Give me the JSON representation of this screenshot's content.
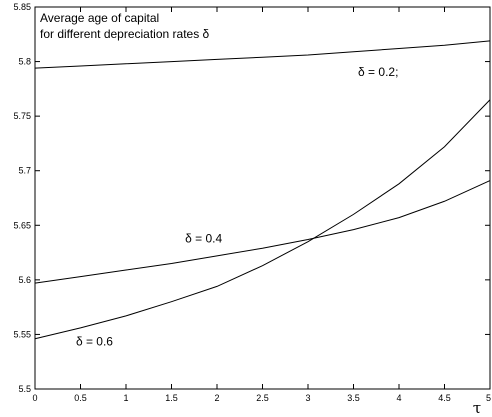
{
  "chart_data": {
    "type": "line",
    "title_lines": [
      "Average age of capital",
      "for different depreciation rates δ"
    ],
    "xlabel": "τ",
    "ylabel": "",
    "xlim": [
      0,
      5
    ],
    "ylim": [
      5.5,
      5.85
    ],
    "grid": false,
    "x_ticks": [
      "0",
      "0.5",
      "1",
      "1.5",
      "2",
      "2.5",
      "3",
      "3.5",
      "4",
      "4.5",
      "5"
    ],
    "y_ticks": [
      "5.5",
      "5.55",
      "5.6",
      "5.65",
      "5.7",
      "5.75",
      "5.8",
      "5.85"
    ],
    "series": [
      {
        "name": "δ = 0.2;",
        "x": [
          0,
          0.5,
          1,
          1.5,
          2,
          2.5,
          3,
          3.5,
          4,
          4.5,
          5
        ],
        "y": [
          5.794,
          5.796,
          5.798,
          5.8,
          5.802,
          5.804,
          5.806,
          5.809,
          5.812,
          5.815,
          5.819
        ]
      },
      {
        "name": "δ = 0.4",
        "x": [
          0,
          0.5,
          1,
          1.5,
          2,
          2.5,
          3,
          3.5,
          4,
          4.5,
          5
        ],
        "y": [
          5.597,
          5.603,
          5.609,
          5.615,
          5.622,
          5.629,
          5.637,
          5.646,
          5.657,
          5.672,
          5.691
        ]
      },
      {
        "name": "δ = 0.6",
        "x": [
          0,
          0.5,
          1,
          1.5,
          2,
          2.5,
          3,
          3.5,
          4,
          4.5,
          5
        ],
        "y": [
          5.546,
          5.556,
          5.567,
          5.58,
          5.594,
          5.613,
          5.635,
          5.66,
          5.688,
          5.722,
          5.765
        ]
      }
    ],
    "annotations": [
      {
        "text": "δ = 0.2;",
        "x": 3.55,
        "y": 5.787
      },
      {
        "text": "δ = 0.4",
        "x": 1.65,
        "y": 5.634
      },
      {
        "text": "δ = 0.6",
        "x": 0.45,
        "y": 5.54
      }
    ]
  }
}
